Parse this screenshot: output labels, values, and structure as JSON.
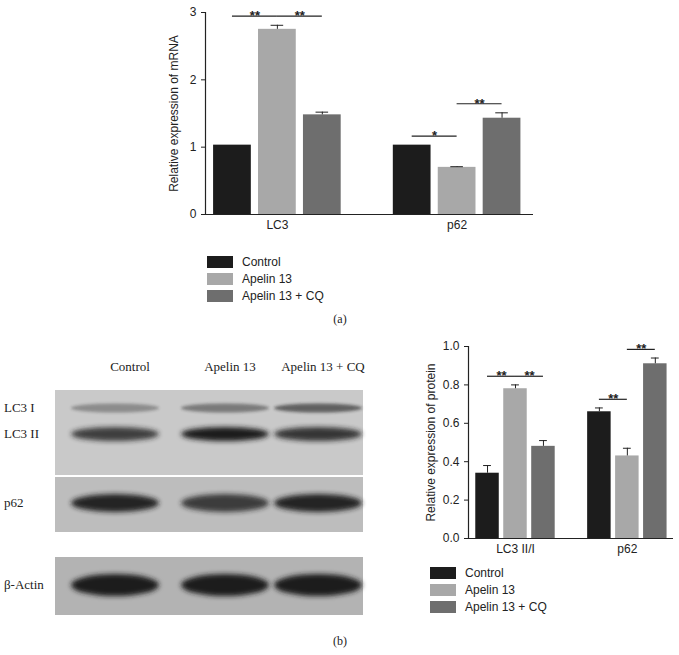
{
  "chart_data": [
    {
      "type": "bar",
      "caption": "(a)",
      "ylabel": "Relative expression of mRNA",
      "categories": [
        "LC3",
        "p62"
      ],
      "ylim": [
        0,
        3
      ],
      "yticks": [
        0,
        1,
        2,
        3
      ],
      "series": [
        {
          "name": "Control",
          "color": "#1c1c1c",
          "values": [
            1.03,
            1.03
          ],
          "errors": [
            0,
            0
          ]
        },
        {
          "name": "Apelin 13",
          "color": "#a8a8a8",
          "values": [
            2.75,
            0.7
          ],
          "errors": [
            0.06,
            0.01
          ]
        },
        {
          "name": "Apelin 13 + CQ",
          "color": "#6e6e6e",
          "values": [
            1.48,
            1.43
          ],
          "errors": [
            0.04,
            0.08
          ]
        }
      ],
      "annotations": [
        {
          "category": "LC3",
          "from": "Control",
          "to": "Apelin 13",
          "text": "**"
        },
        {
          "category": "LC3",
          "from": "Apelin 13",
          "to": "Apelin 13 + CQ",
          "text": "**"
        },
        {
          "category": "p62",
          "from": "Control",
          "to": "Apelin 13",
          "text": "*"
        },
        {
          "category": "p62",
          "from": "Apelin 13",
          "to": "Apelin 13 + CQ",
          "text": "**"
        }
      ]
    },
    {
      "type": "bar",
      "caption": "(b)",
      "ylabel": "Relative expression of protein",
      "categories": [
        "LC3 II/I",
        "p62"
      ],
      "ylim": [
        0,
        1
      ],
      "yticks": [
        {
          "value": 0,
          "label": "0.0"
        },
        {
          "value": 0.2,
          "label": "0.2"
        },
        {
          "value": 0.4,
          "label": "0.4"
        },
        {
          "value": 0.6,
          "label": "0.6"
        },
        {
          "value": 0.8,
          "label": "0.8"
        },
        {
          "value": 1,
          "label": "1.0"
        }
      ],
      "series": [
        {
          "name": "Control",
          "color": "#1c1c1c",
          "values": [
            0.34,
            0.66
          ],
          "errors": [
            0.04,
            0.02
          ]
        },
        {
          "name": "Apelin 13",
          "color": "#a8a8a8",
          "values": [
            0.78,
            0.43
          ],
          "errors": [
            0.02,
            0.04
          ]
        },
        {
          "name": "Apelin 13 + CQ",
          "color": "#6e6e6e",
          "values": [
            0.48,
            0.91
          ],
          "errors": [
            0.03,
            0.03
          ]
        }
      ],
      "annotations": [
        {
          "category": "LC3 II/I",
          "from": "Control",
          "to": "Apelin 13",
          "text": "**"
        },
        {
          "category": "LC3 II/I",
          "from": "Apelin 13",
          "to": "Apelin 13 + CQ",
          "text": "**"
        },
        {
          "category": "p62",
          "from": "Control",
          "to": "Apelin 13",
          "text": "**"
        },
        {
          "category": "p62",
          "from": "Apelin 13",
          "to": "Apelin 13 + CQ",
          "text": "**"
        }
      ]
    }
  ],
  "blot": {
    "lanes": [
      "Control",
      "Apelin 13",
      "Apelin 13 + CQ"
    ],
    "rows": [
      "LC3 I",
      "LC3 II",
      "p62",
      "β-Actin"
    ]
  }
}
